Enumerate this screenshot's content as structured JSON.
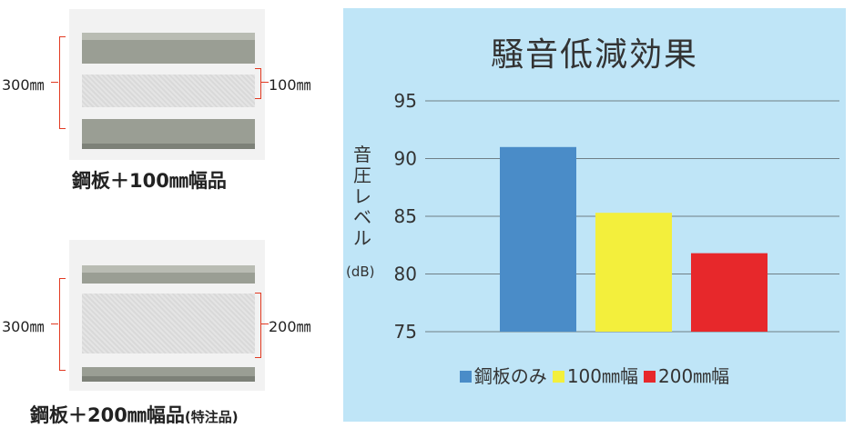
{
  "products": [
    {
      "height_label": "300㎜",
      "width_label": "100㎜",
      "felt_fraction": 0.32,
      "caption": "鋼板＋100㎜幅品",
      "note": ""
    },
    {
      "height_label": "300㎜",
      "width_label": "200㎜",
      "felt_fraction": 0.58,
      "caption": "鋼板＋200㎜幅品",
      "note": "(特注品)"
    }
  ],
  "chart_data": {
    "type": "bar",
    "title": "騒音低減効果",
    "ylabel": "音圧レベル",
    "yunit": "(dB)",
    "ylim": [
      75,
      95
    ],
    "yticks": [
      95,
      90,
      85,
      80,
      75
    ],
    "grid": true,
    "legend_position": "bottom",
    "series": [
      {
        "name": "鋼板のみ",
        "value": 91.0,
        "color": "#4a8cc8"
      },
      {
        "name": "100㎜幅",
        "value": 85.3,
        "color": "#f3ef3c"
      },
      {
        "name": "200㎜幅",
        "value": 81.8,
        "color": "#e7282b"
      }
    ]
  }
}
